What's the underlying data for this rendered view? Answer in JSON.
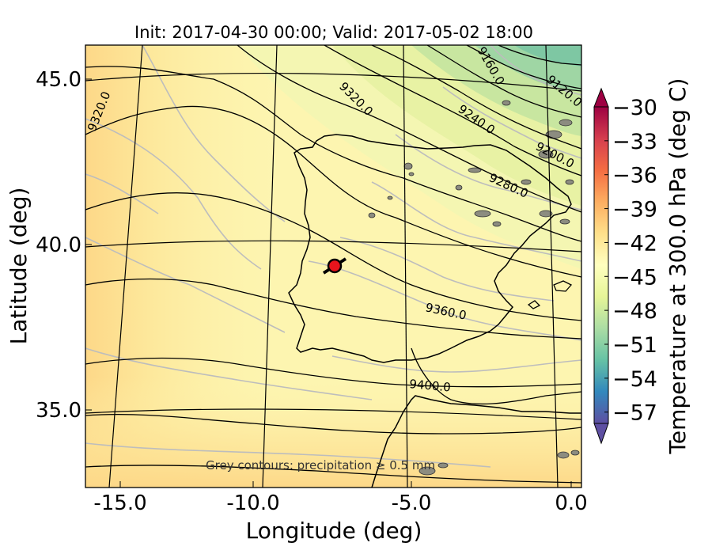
{
  "title": "Init: 2017-04-30 00:00; Valid: 2017-05-02 18:00",
  "xlabel": "Longitude (deg)",
  "ylabel": "Latitude (deg)",
  "x_ticks": [
    "-15.0",
    "-10.0",
    "-5.0",
    "0.0"
  ],
  "y_ticks": [
    "45.0",
    "40.0",
    "35.0"
  ],
  "footnote": "Grey contours: precipitation  ≥ 0.5 mm",
  "colorbar": {
    "label": "Temperature at 300.0 hPa (deg C)",
    "ticks": [
      "−30",
      "−33",
      "−36",
      "−39",
      "−42",
      "−45",
      "−48",
      "−51",
      "−54",
      "−57"
    ],
    "range": [
      -58,
      -30
    ],
    "extend": "both",
    "colormap": "Spectral_r"
  },
  "contour_labels": [
    "9320.0",
    "9320.0",
    "9160.0",
    "9120.0",
    "9240.0",
    "9200.0",
    "9280.0",
    "9360.0",
    "9400.0"
  ],
  "chart_data": {
    "type": "map",
    "title": "Init: 2017-04-30 00:00; Valid: 2017-05-02 18:00",
    "xlabel": "Longitude (deg)",
    "ylabel": "Latitude (deg)",
    "xlim": [
      -16,
      0
    ],
    "ylim": [
      33,
      46
    ],
    "filled_field": "Temperature at 300.0 hPa (deg C)",
    "line_contours": "geopotential height",
    "contour_levels": [
      9120,
      9160,
      9200,
      9240,
      9280,
      9320,
      9360,
      9400
    ],
    "marker": {
      "lon": -7.6,
      "lat": 39.4,
      "color": "#e8141c"
    },
    "grid": true
  },
  "colors": {
    "background": "#fdf5b0",
    "coast": "#111111",
    "precip": "#b8b8b8",
    "marker": "#e8141c"
  }
}
